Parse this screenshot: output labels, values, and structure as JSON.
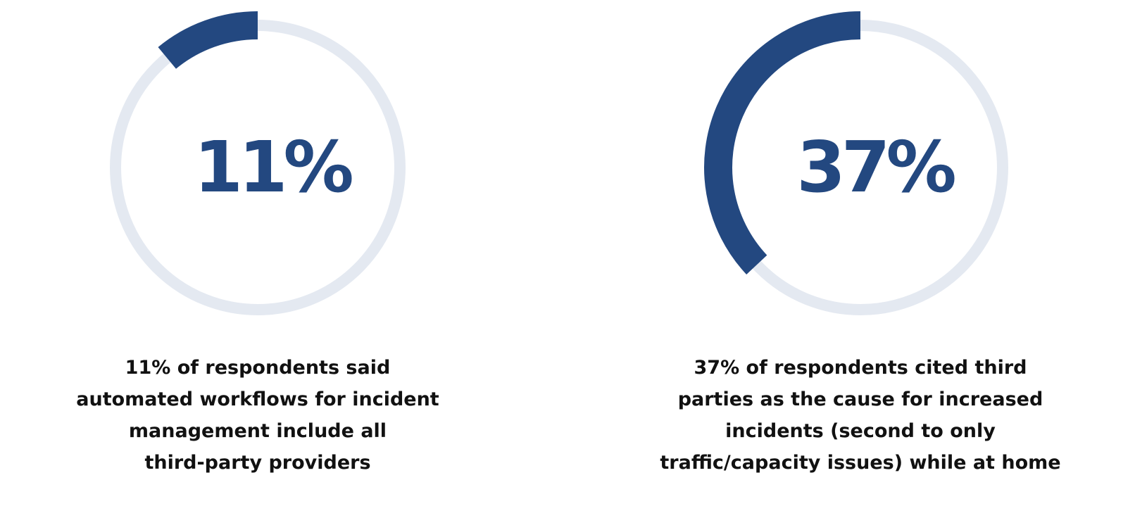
{
  "colors": {
    "accent": "#234880",
    "track": "#e4e9f1",
    "caption_text": "#111111"
  },
  "chart_data": [
    {
      "type": "donut",
      "value_percent": 11,
      "center_label": "11%",
      "caption_lines": [
        "11% of respondents said",
        "automated workflows for incident",
        "management include all",
        "third-party providers"
      ]
    },
    {
      "type": "donut",
      "value_percent": 37,
      "center_label": "37%",
      "caption_lines": [
        "37% of respondents cited third",
        "parties as the cause for increased",
        "incidents (second to only",
        "traffic/capacity issues) while at home"
      ]
    }
  ]
}
